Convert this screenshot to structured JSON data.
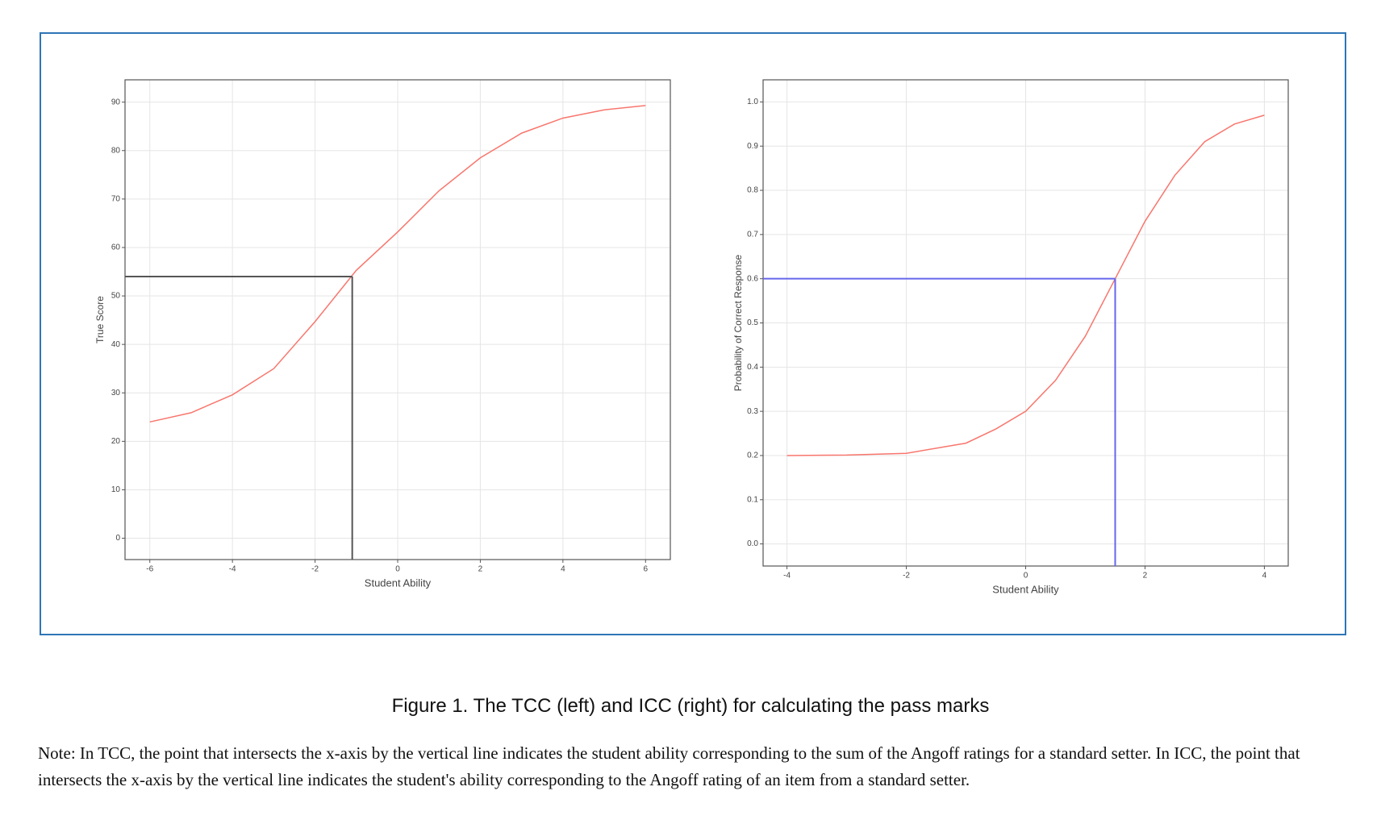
{
  "chart_data": [
    {
      "type": "line",
      "xlabel": "Student Ability",
      "ylabel": "True Score",
      "x": [
        -6,
        -5,
        -4,
        -3,
        -2,
        -1,
        0,
        1,
        2,
        3,
        4,
        5,
        6
      ],
      "series": [
        {
          "color": "#f8766d",
          "values": [
            24,
            25.9,
            29.6,
            35,
            44.7,
            55.3,
            63.2,
            71.7,
            78.5,
            83.6,
            86.7,
            88.4,
            89.3
          ]
        }
      ],
      "reference": {
        "x": -1.1,
        "y": 54,
        "color": "#555555"
      },
      "xlim": [
        -6.6,
        6.6
      ],
      "ylim": [
        -4.4,
        94.6
      ],
      "xticks": [
        -6,
        -4,
        -2,
        0,
        2,
        4,
        6
      ],
      "yticks": [
        0,
        10,
        20,
        30,
        40,
        50,
        60,
        70,
        80,
        90
      ],
      "grid": true
    },
    {
      "type": "line",
      "xlabel": "Student Ability",
      "ylabel": "Probability of Correct Response",
      "x": [
        -4,
        -3,
        -2,
        -1,
        -0.5,
        0,
        0.5,
        1,
        1.5,
        2,
        2.5,
        3,
        3.5,
        4
      ],
      "series": [
        {
          "color": "#f8766d",
          "values": [
            0.2,
            0.201,
            0.205,
            0.228,
            0.26,
            0.3,
            0.37,
            0.47,
            0.6,
            0.73,
            0.834,
            0.91,
            0.95,
            0.97
          ]
        }
      ],
      "reference": {
        "x": 1.5,
        "y": 0.6,
        "color": "#6666ee"
      },
      "xlim": [
        -4.4,
        4.4
      ],
      "ylim": [
        -0.05,
        1.05
      ],
      "xticks": [
        -4,
        -2,
        0,
        2,
        4
      ],
      "yticks": [
        {
          "value": 0,
          "label": "0.0"
        },
        0.1,
        0.2,
        0.3,
        0.4,
        0.5,
        0.6,
        0.7,
        0.8,
        0.9,
        {
          "value": 1,
          "label": "1.0"
        }
      ],
      "grid": true
    }
  ],
  "caption": "Figure 1. The TCC (left) and ICC (right) for calculating the pass marks",
  "note": "Note: In TCC, the point that intersects the x-axis by the vertical line indicates the student ability corresponding to the sum of the Angoff ratings for a standard setter. In ICC, the point that intersects the x-axis by the vertical line indicates the student's ability corresponding to the Angoff rating of an item from a standard setter."
}
